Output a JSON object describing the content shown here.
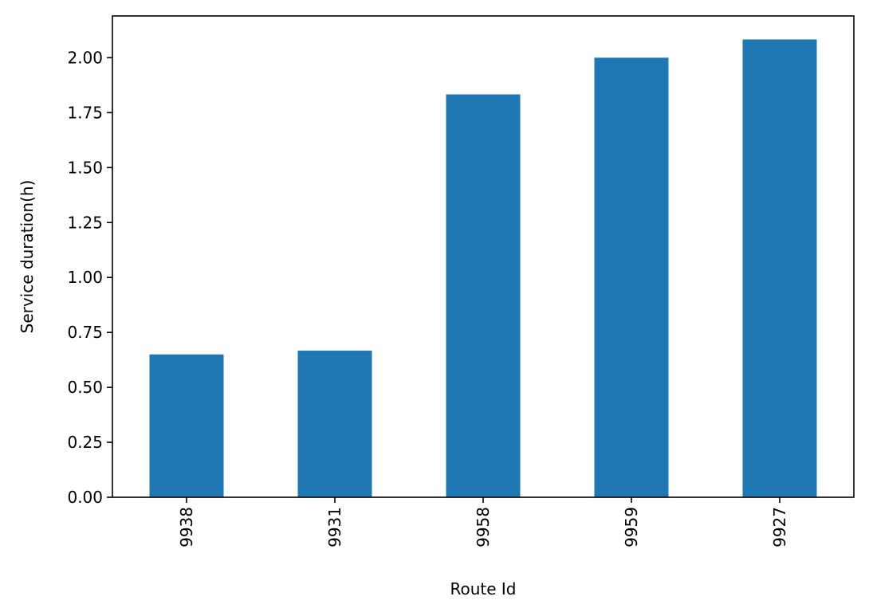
{
  "chart_data": {
    "type": "bar",
    "categories": [
      "9938",
      "9931",
      "9958",
      "9959",
      "9927"
    ],
    "values": [
      0.65,
      0.667,
      1.833,
      2.0,
      2.083
    ],
    "title": "",
    "xlabel": "Route Id",
    "ylabel": "Service duration(h)",
    "ylim": [
      0,
      2.19
    ],
    "yticks": [
      "0.00",
      "0.25",
      "0.50",
      "0.75",
      "1.00",
      "1.25",
      "1.50",
      "1.75",
      "2.00"
    ],
    "bar_color": "#1f77b4",
    "grid": false,
    "legend": "none"
  }
}
